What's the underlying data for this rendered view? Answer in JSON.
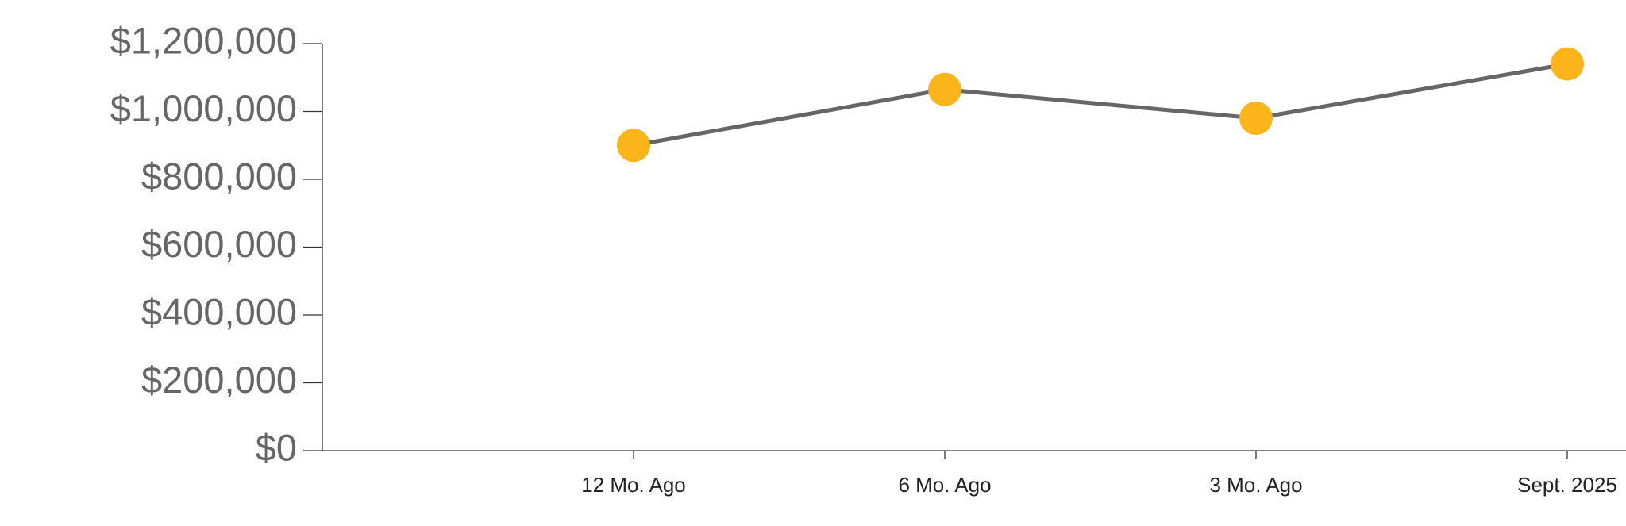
{
  "chart_data": {
    "type": "line",
    "categories": [
      null,
      "12 Mo. Ago",
      "6 Mo. Ago",
      "3 Mo. Ago",
      "Sept. 2025"
    ],
    "values": [
      null,
      900000,
      1065000,
      980000,
      1140000
    ],
    "color": "#fbb41a",
    "line_color": "#666666",
    "ylim": [
      0,
      1200000
    ],
    "yticks": [
      {
        "value": 0,
        "label": "$0"
      },
      {
        "value": 200000,
        "label": "$200,000"
      },
      {
        "value": 400000,
        "label": "$400,000"
      },
      {
        "value": 600000,
        "label": "$600,000"
      },
      {
        "value": 800000,
        "label": "$800,000"
      },
      {
        "value": 1000000,
        "label": "$1,000,000"
      },
      {
        "value": 1200000,
        "label": "$1,200,000"
      }
    ]
  }
}
